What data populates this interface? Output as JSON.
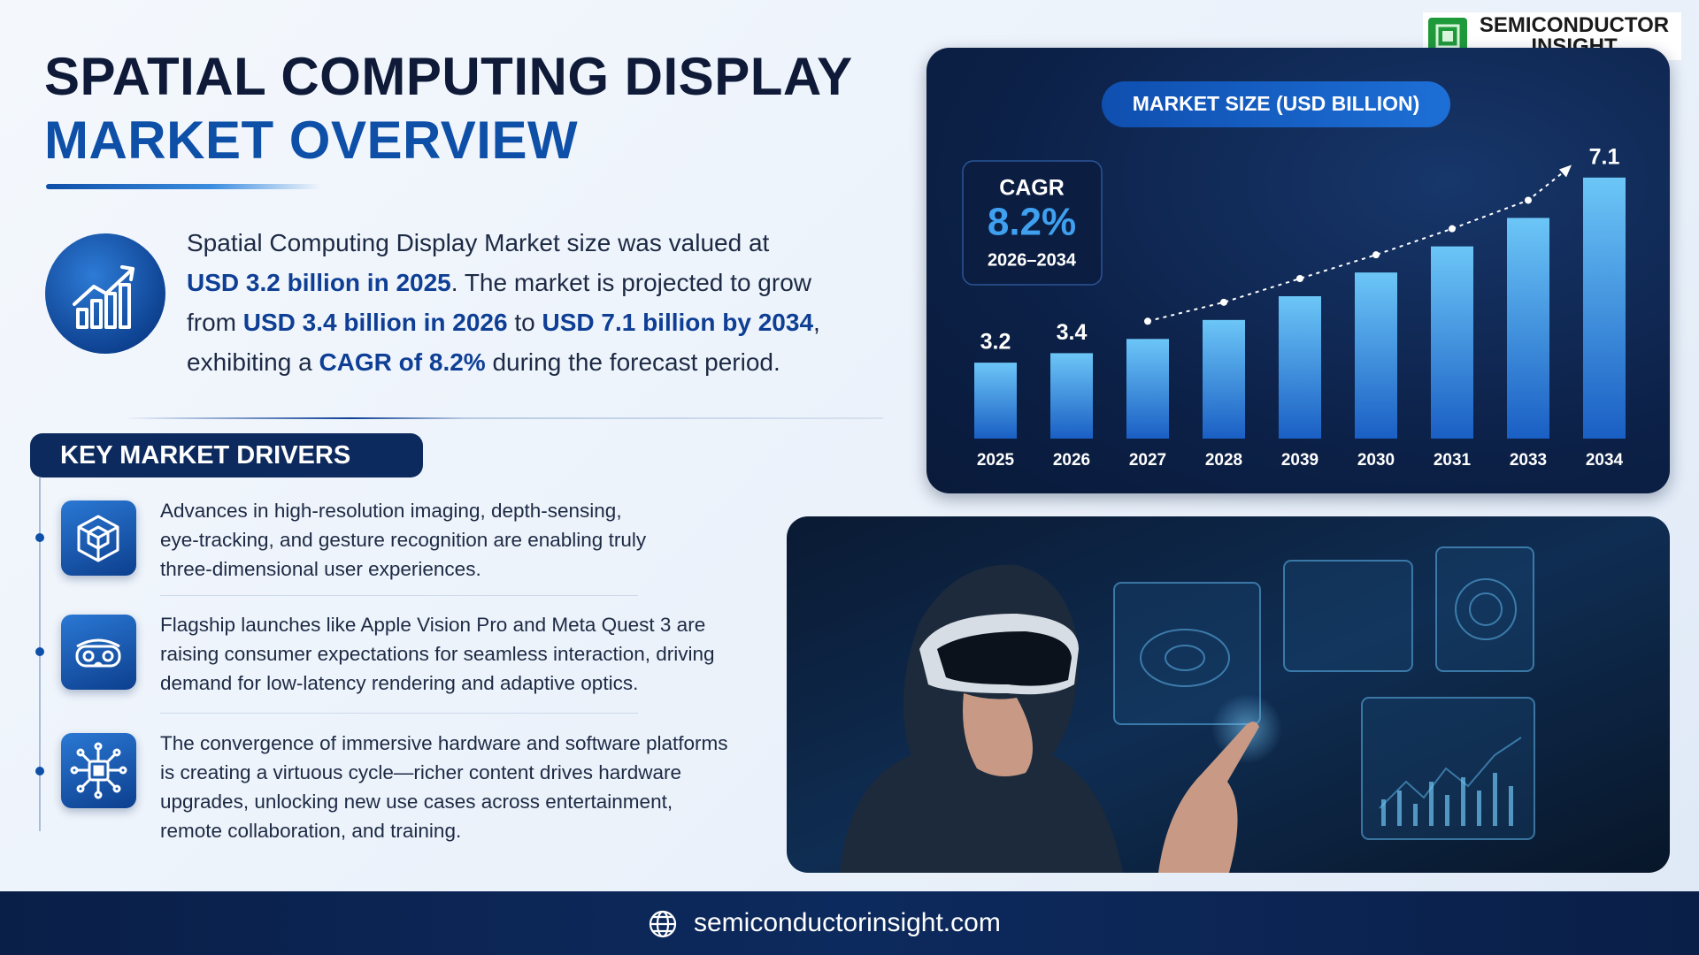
{
  "header": {
    "title_line1": "SPATIAL COMPUTING DISPLAY",
    "title_line2": "MARKET OVERVIEW"
  },
  "logo": {
    "line1": "SEMICONDUCTOR",
    "line2": "INSIGHT"
  },
  "summary": [
    "Spatial Computing Display Market size was valued at",
    "USD 3.2 billion in 2025",
    ". The market is projected to grow",
    "from ",
    "USD 3.4 billion in 2026",
    " to ",
    "USD 7.1 billion by 2034",
    ",",
    "exhibiting a ",
    "CAGR of 8.2%",
    " during the forecast period."
  ],
  "drivers": {
    "title": "KEY MARKET DRIVERS",
    "items": [
      "Advances in high-resolution imaging, depth-sensing, eye-tracking, and gesture recognition are enabling truly three-dimensional user experiences.",
      "Flagship launches like Apple Vision Pro and Meta Quest 3 are raising consumer expectations for seamless interaction, driving demand for low-latency rendering and adaptive optics.",
      "The convergence of immersive hardware and software platforms is creating a virtuous cycle—richer content drives hardware upgrades, unlocking new use cases across entertainment, remote collaboration, and training."
    ]
  },
  "chart_data": {
    "type": "bar",
    "title": "MARKET SIZE (USD BILLION)",
    "cagr": {
      "label": "CAGR",
      "value": "8.2%",
      "period": "2026–2034"
    },
    "categories": [
      "2025",
      "2026",
      "2027",
      "2028",
      "2039",
      "2030",
      "2031",
      "2033",
      "2034"
    ],
    "values": [
      3.2,
      3.4,
      3.7,
      4.1,
      4.6,
      5.1,
      5.65,
      6.25,
      7.1
    ],
    "value_labels": [
      "3.2",
      "3.4",
      null,
      null,
      null,
      null,
      null,
      null,
      "7.1"
    ],
    "ylim": [
      1.6,
      7.6
    ],
    "grid": false
  },
  "footer": {
    "url": "semiconductorinsight.com"
  }
}
